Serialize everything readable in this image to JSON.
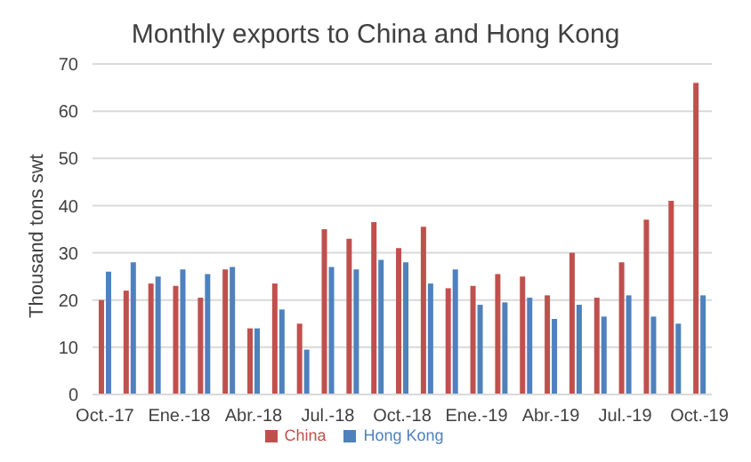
{
  "chart_data": {
    "type": "bar",
    "title": "Monthly exports to China and Hong Kong",
    "ylabel": "Thousand tons swt",
    "categories": [
      "Oct.-17",
      null,
      null,
      "Ene.-18",
      null,
      null,
      "Abr.-18",
      null,
      null,
      "Jul.-18",
      null,
      null,
      "Oct.-18",
      null,
      null,
      "Ene.-19",
      null,
      null,
      "Abr.-19",
      null,
      null,
      "Jul.-19",
      null,
      null,
      "Oct.-19"
    ],
    "series": [
      {
        "name": "China",
        "color": "#c0504d",
        "values": [
          20,
          22,
          23.5,
          23,
          20.5,
          26.5,
          14,
          23.5,
          15,
          35,
          33,
          36.5,
          31,
          35.5,
          22.5,
          23,
          25.5,
          25,
          21,
          30,
          20.5,
          28,
          37,
          41,
          66
        ]
      },
      {
        "name": "Hong Kong",
        "color": "#4f81bd",
        "values": [
          26,
          28,
          25,
          26.5,
          25.5,
          27,
          14,
          18,
          9.5,
          27,
          26.5,
          28.5,
          28,
          23.5,
          26.5,
          19,
          19.5,
          20.5,
          16,
          19,
          16.5,
          21,
          16.5,
          15,
          21
        ]
      }
    ],
    "ylim": [
      0,
      70
    ],
    "yticks": [
      0,
      10,
      20,
      30,
      40,
      50,
      60,
      70
    ],
    "grid": "y",
    "legend": "bottom"
  }
}
